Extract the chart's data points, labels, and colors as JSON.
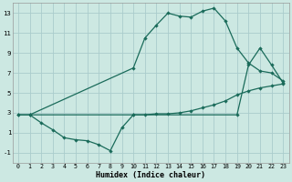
{
  "xlabel": "Humidex (Indice chaleur)",
  "background_color": "#cce8e2",
  "grid_color": "#aacccc",
  "line_color": "#1a6b5a",
  "xlim": [
    -0.5,
    23.5
  ],
  "ylim": [
    -2,
    14
  ],
  "xticks": [
    0,
    1,
    2,
    3,
    4,
    5,
    6,
    7,
    8,
    9,
    10,
    11,
    12,
    13,
    14,
    15,
    16,
    17,
    18,
    19,
    20,
    21,
    22,
    23
  ],
  "yticks": [
    -1,
    1,
    3,
    5,
    7,
    9,
    11,
    13
  ],
  "line1_x": [
    0,
    1,
    2,
    3,
    4,
    5,
    6,
    7,
    8,
    9,
    10,
    11,
    12,
    13,
    14,
    15,
    16,
    17,
    18,
    19,
    20,
    21,
    22,
    23
  ],
  "line1_y": [
    2.8,
    2.8,
    2.0,
    1.3,
    0.5,
    0.3,
    0.2,
    -0.2,
    -0.8,
    1.5,
    2.8,
    2.8,
    2.9,
    2.9,
    3.0,
    3.2,
    3.5,
    3.8,
    4.2,
    4.8,
    5.2,
    5.5,
    5.7,
    5.9
  ],
  "line2_x": [
    0,
    1,
    10,
    11,
    12,
    13,
    14,
    15,
    16,
    17,
    18,
    19,
    20,
    21,
    22,
    23
  ],
  "line2_y": [
    2.8,
    2.8,
    7.5,
    10.5,
    11.8,
    13.0,
    12.7,
    12.6,
    13.2,
    13.5,
    12.2,
    9.5,
    8.0,
    7.2,
    7.0,
    6.2
  ],
  "line3_x": [
    1,
    10,
    19,
    20,
    21,
    22,
    23
  ],
  "line3_y": [
    2.8,
    2.8,
    2.8,
    7.8,
    9.5,
    7.8,
    6.0
  ]
}
